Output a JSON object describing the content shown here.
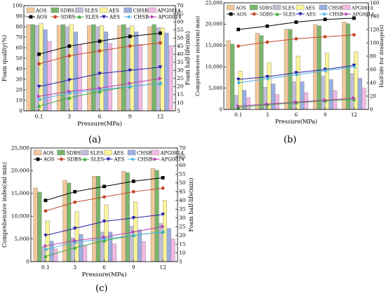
{
  "chart_data": [
    {
      "type": "bar",
      "label": "(a)",
      "categories": [
        "0.1",
        "3",
        "6",
        "9",
        "12"
      ],
      "xlabel": "Pressure(MPa)",
      "ylabel": "Foam quality(%)",
      "ylim": [
        0,
        100
      ],
      "y_ticks": [
        0,
        10,
        20,
        30,
        40,
        50,
        60,
        70,
        80,
        90,
        100
      ],
      "y2label": "Foam half-life(min)",
      "y2lim": [
        5,
        70
      ],
      "y2_ticks": [
        5,
        10,
        15,
        20,
        25,
        30,
        35,
        40,
        45,
        50,
        55,
        60,
        65,
        70
      ],
      "legend_position": "top",
      "bar_series": [
        {
          "name": "AOS",
          "color": "#f2c79b",
          "values": [
            82,
            81,
            81,
            81,
            80
          ]
        },
        {
          "name": "SDBS",
          "color": "#79b56b",
          "values": [
            82,
            82,
            82,
            82,
            82
          ]
        },
        {
          "name": "SLES",
          "color": "#c1bed8",
          "values": [
            81,
            80,
            80,
            79,
            79
          ]
        },
        {
          "name": "AES",
          "color": "#fbf59a",
          "values": [
            83,
            82,
            81,
            81,
            79
          ]
        },
        {
          "name": "CHSB",
          "color": "#9aaee0",
          "values": [
            77,
            75,
            75,
            75,
            74
          ]
        },
        {
          "name": "APG0814",
          "color": "#f2b9e3",
          "values": [
            66,
            63,
            64,
            63,
            62
          ]
        }
      ],
      "line_series": [
        {
          "name": "AOS",
          "color": "#000000",
          "marker": "square",
          "values": [
            40,
            45,
            48,
            51,
            53
          ]
        },
        {
          "name": "SDBS",
          "color": "#c4472b",
          "marker": "circle",
          "values": [
            34,
            39,
            42,
            45,
            47
          ]
        },
        {
          "name": "SLES",
          "color": "#3aa83a",
          "marker": "triangle-up",
          "values": [
            8,
            13,
            17,
            20,
            22
          ]
        },
        {
          "name": "AES",
          "color": "#2323a8",
          "marker": "triangle-down",
          "values": [
            20,
            24,
            28,
            30,
            32
          ]
        },
        {
          "name": "CHSB",
          "color": "#49b4e6",
          "marker": "triangle-left",
          "values": [
            12,
            16,
            18,
            20,
            22
          ]
        },
        {
          "name": "APG0814",
          "color": "#b240b2",
          "marker": "triangle-right",
          "values": [
            14,
            17,
            19,
            22,
            25
          ]
        }
      ]
    },
    {
      "type": "bar",
      "label": "(b)",
      "categories": [
        "0.1",
        "3",
        "6",
        "9",
        "12"
      ],
      "xlabel": "Pressure(MPa)",
      "ylabel": "Comprehensive index(ml·min)",
      "ylim": [
        0,
        25000
      ],
      "y_ticks": [
        0,
        5000,
        10000,
        15000,
        20000,
        25000
      ],
      "y_tick_labels": [
        "0",
        "5,000",
        "10,000",
        "15,000",
        "20,000",
        "25,000"
      ],
      "y2label": "Half-life for drainage(s)",
      "y2lim": [
        0,
        160
      ],
      "y2_ticks": [
        0,
        20,
        40,
        60,
        80,
        100,
        120,
        140,
        160
      ],
      "legend_position": "top",
      "bar_series": [
        {
          "name": "AOS",
          "color": "#f2c79b",
          "values": [
            16200,
            17900,
            18800,
            19900,
            20500
          ]
        },
        {
          "name": "SDBS",
          "color": "#79b56b",
          "values": [
            15300,
            17300,
            18800,
            19600,
            20100
          ]
        },
        {
          "name": "SLES",
          "color": "#c1bed8",
          "values": [
            3300,
            5200,
            6500,
            7800,
            8400
          ]
        },
        {
          "name": "AES",
          "color": "#fbf59a",
          "values": [
            9000,
            11000,
            12500,
            13200,
            13500
          ]
        },
        {
          "name": "CHSB",
          "color": "#9aaee0",
          "values": [
            4500,
            6000,
            6500,
            7000,
            7300
          ]
        },
        {
          "name": "APG0814",
          "color": "#f2b9e3",
          "values": [
            2800,
            3500,
            3900,
            4400,
            5000
          ]
        }
      ],
      "line_series": [
        {
          "name": "AOS",
          "color": "#000000",
          "marker": "square",
          "values": [
            120,
            125,
            131,
            135,
            137
          ]
        },
        {
          "name": "SDBS",
          "color": "#c4472b",
          "marker": "circle",
          "values": [
            95,
            101,
            106,
            109,
            112
          ]
        },
        {
          "name": "SLES",
          "color": "#3aa83a",
          "marker": "triangle-up",
          "values": [
            3,
            7,
            10,
            13,
            15
          ]
        },
        {
          "name": "AES",
          "color": "#2323a8",
          "marker": "triangle-down",
          "values": [
            45,
            49,
            55,
            60,
            66
          ]
        },
        {
          "name": "CHSB",
          "color": "#49b4e6",
          "marker": "triangle-left",
          "values": [
            40,
            46,
            52,
            58,
            64
          ]
        },
        {
          "name": "APG0814",
          "color": "#b240b2",
          "marker": "triangle-right",
          "values": [
            5,
            8,
            11,
            14,
            17
          ]
        }
      ]
    },
    {
      "type": "bar",
      "label": "(c)",
      "categories": [
        "0.1",
        "3",
        "6",
        "9",
        "12"
      ],
      "xlabel": "Pressure(MPa)",
      "ylabel": "Comprehensive index(ml·min)",
      "ylim": [
        0,
        25000
      ],
      "y_ticks": [
        0,
        5000,
        10000,
        15000,
        20000,
        25000
      ],
      "y_tick_labels": [
        "0",
        "5,000",
        "10,000",
        "15,000",
        "20,000",
        "25,000"
      ],
      "y2label": "Foam half-life(min)",
      "y2lim": [
        5,
        70
      ],
      "y2_ticks": [
        5,
        10,
        15,
        20,
        25,
        30,
        35,
        40,
        45,
        50,
        55,
        60,
        65,
        70
      ],
      "legend_position": "top",
      "bar_series": [
        {
          "name": "AOS",
          "color": "#f2c79b",
          "values": [
            16200,
            17900,
            18800,
            19900,
            20500
          ]
        },
        {
          "name": "SDBS",
          "color": "#79b56b",
          "values": [
            15300,
            17300,
            18800,
            19600,
            20100
          ]
        },
        {
          "name": "SLES",
          "color": "#c1bed8",
          "values": [
            3300,
            5200,
            6500,
            7800,
            8400
          ]
        },
        {
          "name": "AES",
          "color": "#fbf59a",
          "values": [
            9000,
            11000,
            12500,
            13200,
            13500
          ]
        },
        {
          "name": "CHSB",
          "color": "#9aaee0",
          "values": [
            4500,
            6000,
            6500,
            7000,
            7300
          ]
        },
        {
          "name": "APG0814",
          "color": "#f2b9e3",
          "values": [
            2800,
            3500,
            3900,
            4400,
            5000
          ]
        }
      ],
      "line_series": [
        {
          "name": "AOS",
          "color": "#000000",
          "marker": "square",
          "values": [
            40,
            45,
            48,
            51,
            53
          ]
        },
        {
          "name": "SDBS",
          "color": "#c4472b",
          "marker": "circle",
          "values": [
            34,
            39,
            42,
            45,
            47
          ]
        },
        {
          "name": "SLES",
          "color": "#3aa83a",
          "marker": "triangle-up",
          "values": [
            8,
            13,
            17,
            20,
            22
          ]
        },
        {
          "name": "AES",
          "color": "#2323a8",
          "marker": "triangle-down",
          "values": [
            20,
            24,
            28,
            30,
            32
          ]
        },
        {
          "name": "CHSB",
          "color": "#49b4e6",
          "marker": "triangle-left",
          "values": [
            12,
            16,
            18,
            20,
            22
          ]
        },
        {
          "name": "APG0814",
          "color": "#b240b2",
          "marker": "triangle-right",
          "values": [
            14,
            17,
            19,
            22,
            25
          ]
        }
      ]
    }
  ]
}
